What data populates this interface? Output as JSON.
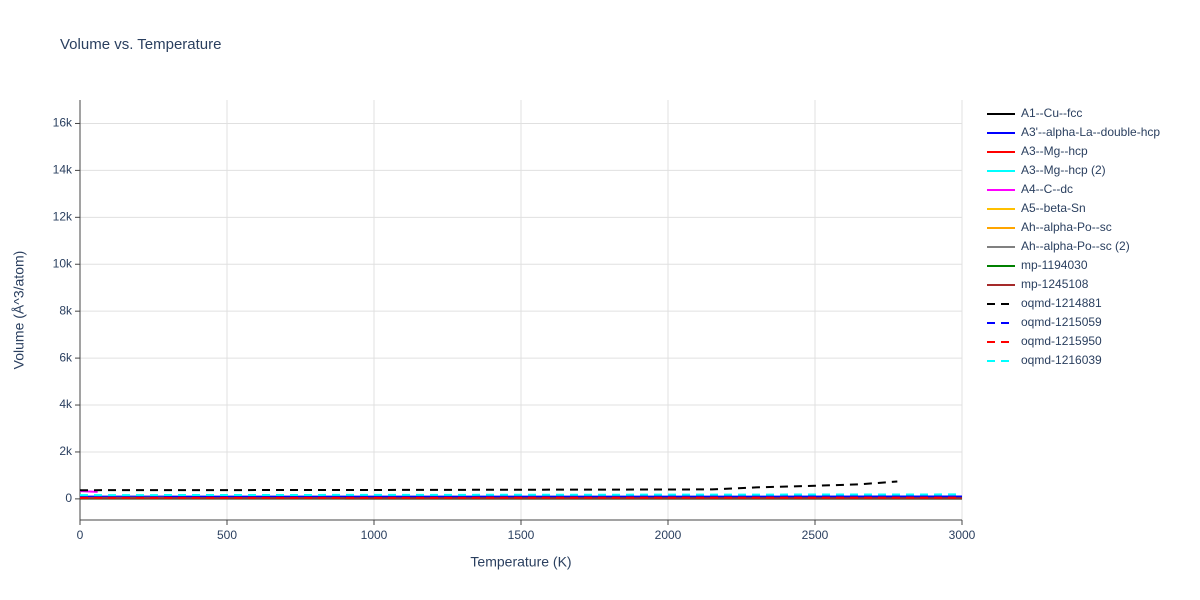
{
  "chart_data": {
    "type": "line",
    "title": "Volume vs. Temperature",
    "x_label": "Temperature (K)",
    "y_label": "Volume (Å^3/atom)",
    "xlim": [
      0,
      3000
    ],
    "xticks": [
      0,
      500,
      1000,
      1500,
      2000,
      2500,
      3000
    ],
    "ylim": [
      -900,
      17000
    ],
    "yticks": [
      0,
      {
        "value": 2000,
        "label": "2k"
      },
      {
        "value": 4000,
        "label": "4k"
      },
      {
        "value": 6000,
        "label": "6k"
      },
      {
        "value": 8000,
        "label": "8k"
      },
      {
        "value": 10000,
        "label": "10k"
      },
      {
        "value": 12000,
        "label": "12k"
      },
      {
        "value": 14000,
        "label": "14k"
      },
      {
        "value": 16000,
        "label": "16k"
      }
    ],
    "grid": true,
    "legend": "right",
    "series": [
      {
        "name": "A1--Cu--fcc",
        "color": "#000000",
        "dash": false,
        "x": [
          0,
          3000
        ],
        "values": [
          12,
          13
        ]
      },
      {
        "name": "A3'--alpha-La--double-hcp",
        "color": "#0000ff",
        "dash": false,
        "x": [
          0,
          3000
        ],
        "values": [
          95,
          100
        ]
      },
      {
        "name": "A3--Mg--hcp",
        "color": "#ff0000",
        "dash": false,
        "x": [
          0,
          900
        ],
        "values": [
          23,
          24
        ]
      },
      {
        "name": "A3--Mg--hcp (2)",
        "color": "#00ffff",
        "dash": false,
        "x": [
          0,
          900
        ],
        "values": [
          23,
          24
        ]
      },
      {
        "name": "A4--C--dc",
        "color": "#ff00ff",
        "dash": false,
        "x": [
          0,
          60
        ],
        "values": [
          330,
          300
        ]
      },
      {
        "name": "A5--beta-Sn",
        "color": "#ffc000",
        "dash": false,
        "x": [
          0,
          300
        ],
        "values": [
          30,
          32
        ]
      },
      {
        "name": "Ah--alpha-Po--sc",
        "color": "#ffa500",
        "dash": false,
        "x": [
          0,
          300
        ],
        "values": [
          40,
          42
        ]
      },
      {
        "name": "Ah--alpha-Po--sc (2)",
        "color": "#808080",
        "dash": false,
        "x": [
          0,
          300
        ],
        "values": [
          40,
          42
        ]
      },
      {
        "name": "mp-1194030",
        "color": "#008000",
        "dash": false,
        "x": [
          0,
          3000
        ],
        "values": [
          20,
          21
        ]
      },
      {
        "name": "mp-1245108",
        "color": "#a52a2a",
        "dash": false,
        "x": [
          0,
          3000
        ],
        "values": [
          25,
          26
        ]
      },
      {
        "name": "oqmd-1214881",
        "color": "#000000",
        "dash": true,
        "x": [
          0,
          500,
          1000,
          1500,
          2000,
          2150,
          2300,
          2500,
          2650,
          2780
        ],
        "values": [
          370,
          375,
          380,
          390,
          400,
          405,
          490,
          560,
          620,
          740
        ]
      },
      {
        "name": "oqmd-1215059",
        "color": "#0000ff",
        "dash": true,
        "x": [
          0,
          3000
        ],
        "values": [
          100,
          105
        ]
      },
      {
        "name": "oqmd-1215950",
        "color": "#ff0000",
        "dash": true,
        "x": [
          0,
          3000
        ],
        "values": [
          50,
          52
        ]
      },
      {
        "name": "oqmd-1216039",
        "color": "#00ffff",
        "dash": true,
        "x": [
          0,
          3000
        ],
        "values": [
          160,
          190
        ]
      }
    ]
  }
}
